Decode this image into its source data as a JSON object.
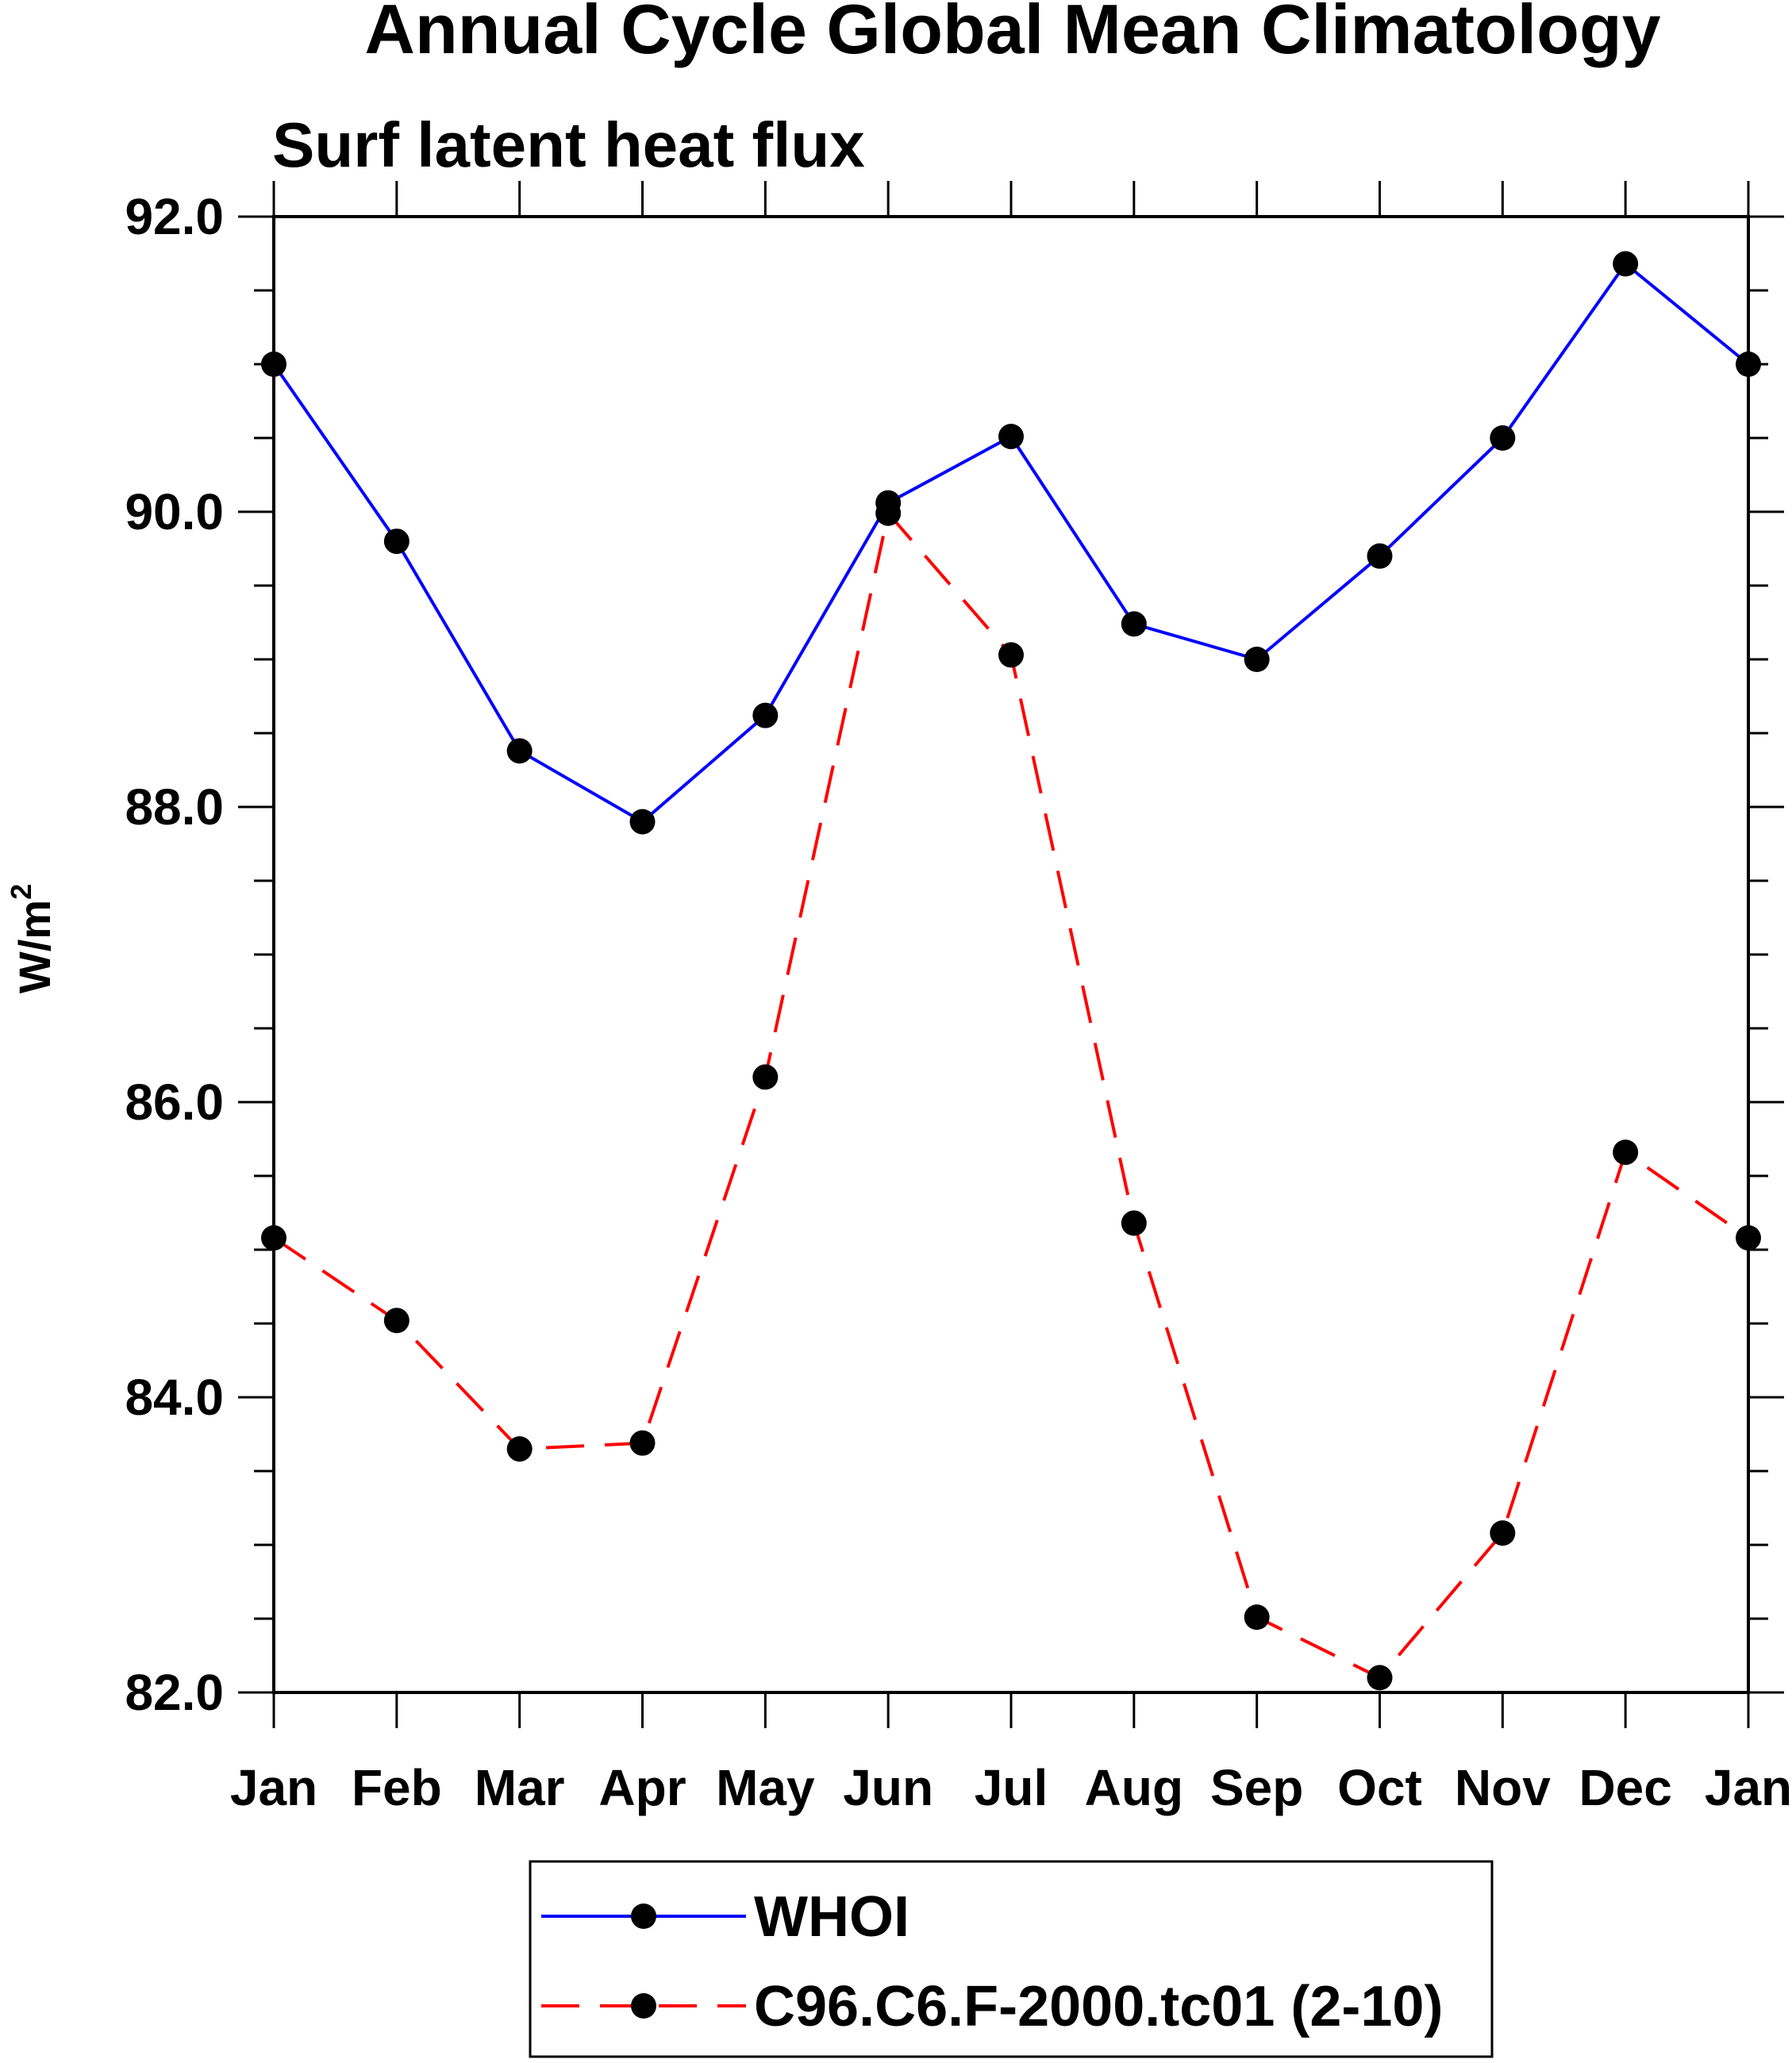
{
  "chart_data": {
    "type": "line",
    "title": "Annual Cycle Global Mean Climatology",
    "subtitle": "Surf latent heat flux",
    "xlabel": "",
    "ylabel": "W/m",
    "ylabel_superscript": "2",
    "categories": [
      "Jan",
      "Feb",
      "Mar",
      "Apr",
      "May",
      "Jun",
      "Jul",
      "Aug",
      "Sep",
      "Oct",
      "Nov",
      "Dec",
      "Jan"
    ],
    "ylim": [
      82.0,
      92.0
    ],
    "yticks": [
      "82.0",
      "84.0",
      "86.0",
      "88.0",
      "90.0",
      "92.0"
    ],
    "ytick_values": [
      82,
      84,
      86,
      88,
      90,
      92
    ],
    "grid": false,
    "legend_position": "bottom-center",
    "series": [
      {
        "name": "WHOI",
        "color": "#0000ff",
        "line_style": "solid",
        "marker": "filled-circle",
        "values": [
          91.0,
          89.8,
          88.38,
          87.9,
          88.62,
          90.06,
          90.51,
          89.24,
          89.0,
          89.7,
          90.5,
          91.68,
          91.0
        ]
      },
      {
        "name": "C96.C6.F-2000.tc01 (2-10)",
        "color": "#ff0000",
        "line_style": "dashed",
        "marker": "filled-circle",
        "values": [
          85.08,
          84.52,
          83.65,
          83.69,
          86.17,
          89.99,
          89.03,
          85.18,
          82.51,
          82.1,
          83.08,
          85.66,
          85.08
        ]
      }
    ]
  }
}
